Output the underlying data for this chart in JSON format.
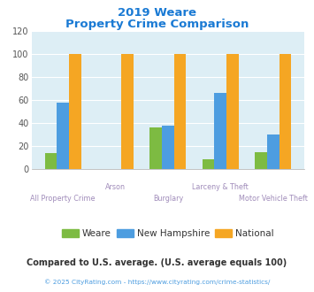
{
  "title_line1": "2019 Weare",
  "title_line2": "Property Crime Comparison",
  "categories": [
    "All Property Crime",
    "Arson",
    "Burglary",
    "Larceny & Theft",
    "Motor Vehicle Theft"
  ],
  "weare": [
    14,
    0,
    36,
    9,
    15
  ],
  "new_hampshire": [
    58,
    0,
    38,
    66,
    30
  ],
  "national": [
    100,
    100,
    100,
    100,
    100
  ],
  "bar_colors": {
    "weare": "#7dbb42",
    "new_hampshire": "#4d9de0",
    "national": "#f5a623"
  },
  "ylim": [
    0,
    120
  ],
  "yticks": [
    0,
    20,
    40,
    60,
    80,
    100,
    120
  ],
  "legend_labels": [
    "Weare",
    "New Hampshire",
    "National"
  ],
  "footnote1": "Compared to U.S. average. (U.S. average equals 100)",
  "footnote2": "© 2025 CityRating.com - https://www.cityrating.com/crime-statistics/",
  "title_color": "#1a7ad4",
  "xlabel_color": "#a08cba",
  "footnote1_color": "#333333",
  "footnote2_color": "#4d9de0",
  "bg_color": "#ddeef5"
}
